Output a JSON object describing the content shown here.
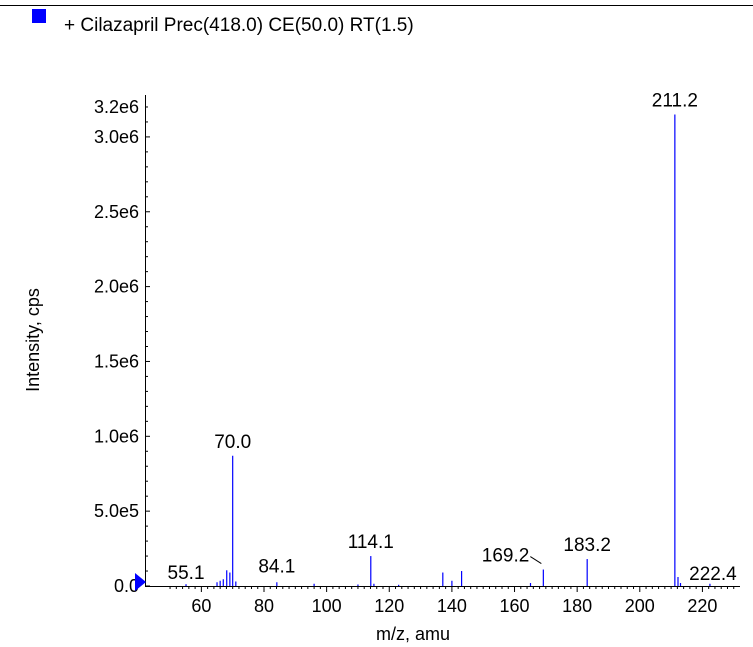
{
  "chart_data": {
    "type": "bar",
    "legend": {
      "label": "+ Cilazapril Prec(418.0) CE(50.0) RT(1.5)",
      "color": "#0000ff",
      "placement": "top-left"
    },
    "xlabel": "m/z, amu",
    "ylabel": "Intensity, cps",
    "xlim": [
      42,
      232
    ],
    "ylim": [
      0,
      3280000
    ],
    "x_ticks": [
      60,
      80,
      100,
      120,
      140,
      160,
      180,
      200,
      220
    ],
    "y_ticks": [
      0,
      500000,
      1000000,
      1500000,
      2000000,
      2500000,
      3000000,
      3200000
    ],
    "y_tick_labels": [
      "0.0",
      "5.0e5",
      "1.0e6",
      "1.5e6",
      "2.0e6",
      "2.5e6",
      "3.0e6",
      "3.2e6"
    ],
    "line_color": "#0000ff",
    "series": [
      {
        "values": [
          [
            55.1,
            12000
          ],
          [
            65.0,
            25000
          ],
          [
            66.0,
            35000
          ],
          [
            67.0,
            45000
          ],
          [
            68.1,
            105000
          ],
          [
            69.1,
            90000
          ],
          [
            70.0,
            870000
          ],
          [
            71.0,
            30000
          ],
          [
            84.1,
            25000
          ],
          [
            96.0,
            15000
          ],
          [
            110.0,
            10000
          ],
          [
            114.1,
            200000
          ],
          [
            115.1,
            15000
          ],
          [
            123.0,
            8000
          ],
          [
            137.1,
            90000
          ],
          [
            140.0,
            35000
          ],
          [
            143.1,
            100000
          ],
          [
            165.1,
            20000
          ],
          [
            169.2,
            110000
          ],
          [
            183.2,
            180000
          ],
          [
            211.2,
            3150000
          ],
          [
            212.2,
            60000
          ],
          [
            213.0,
            20000
          ],
          [
            222.4,
            15000
          ]
        ]
      }
    ],
    "peak_labels": [
      {
        "text": "55.1",
        "x": 55.1
      },
      {
        "text": "70.0",
        "x": 70.0
      },
      {
        "text": "84.1",
        "x": 84.1
      },
      {
        "text": "114.1",
        "x": 114.1
      },
      {
        "text": "169.2",
        "x": 169.2
      },
      {
        "text": "183.2",
        "x": 183.2
      },
      {
        "text": "211.2",
        "x": 211.2
      },
      {
        "text": "222.4",
        "x": 222.4
      }
    ],
    "grid": false
  }
}
